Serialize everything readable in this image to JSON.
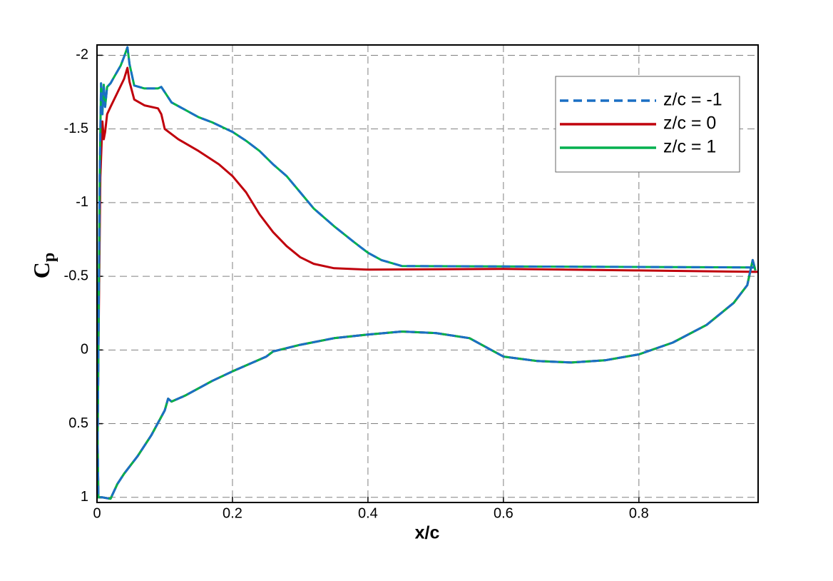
{
  "chart_data": {
    "type": "line",
    "x_label": "x/c",
    "y_label": {
      "text": "C",
      "subscript": "p"
    },
    "xlim": [
      0,
      0.976
    ],
    "ylim": [
      -2.07,
      1.035
    ],
    "invert_y": true,
    "xticks": [
      0,
      0.2,
      0.4,
      0.6,
      0.8
    ],
    "yticks": [
      -2,
      -1.5,
      -1,
      -0.5,
      0,
      0.5,
      1
    ],
    "grid": true,
    "legend": "upper right",
    "series": [
      {
        "name": "z/c = -1",
        "color": "#1a6fc4",
        "dash": true,
        "x": [
          0.97,
          0.45,
          0.42,
          0.4,
          0.38,
          0.35,
          0.32,
          0.3,
          0.28,
          0.26,
          0.24,
          0.22,
          0.2,
          0.17,
          0.15,
          0.13,
          0.11,
          0.1,
          0.095,
          0.09,
          0.07,
          0.055,
          0.048,
          0.045,
          0.04,
          0.035,
          0.025,
          0.02,
          0.015,
          0.012,
          0.01,
          0.008,
          0.006,
          0.004,
          0.002,
          0.001,
          0.002,
          0.008,
          0.02,
          0.03,
          0.04,
          0.06,
          0.08,
          0.1,
          0.105,
          0.11,
          0.13,
          0.17,
          0.2,
          0.25,
          0.26,
          0.3,
          0.35,
          0.4,
          0.45,
          0.5,
          0.55,
          0.58,
          0.6,
          0.65,
          0.7,
          0.75,
          0.8,
          0.85,
          0.9,
          0.94,
          0.96,
          0.968,
          0.972
        ],
        "values": [
          -0.56,
          -0.57,
          -0.61,
          -0.66,
          -0.73,
          -0.84,
          -0.96,
          -1.07,
          -1.18,
          -1.26,
          -1.35,
          -1.42,
          -1.48,
          -1.545,
          -1.58,
          -1.63,
          -1.68,
          -1.75,
          -1.785,
          -1.775,
          -1.775,
          -1.795,
          -1.94,
          -2.055,
          -1.99,
          -1.93,
          -1.85,
          -1.81,
          -1.785,
          -1.65,
          -1.8,
          -1.6,
          -1.81,
          -1.17,
          0.04,
          0.62,
          1.0,
          1.0,
          1.01,
          0.91,
          0.84,
          0.72,
          0.58,
          0.41,
          0.33,
          0.35,
          0.31,
          0.21,
          0.145,
          0.045,
          0.01,
          -0.035,
          -0.08,
          -0.105,
          -0.125,
          -0.115,
          -0.08,
          -0.005,
          0.045,
          0.075,
          0.085,
          0.07,
          0.03,
          -0.05,
          -0.17,
          -0.32,
          -0.44,
          -0.61,
          -0.54
        ]
      },
      {
        "name": "z/c = 0",
        "color": "#c0000c",
        "dash": false,
        "x": [
          0.975,
          0.8,
          0.6,
          0.4,
          0.35,
          0.32,
          0.3,
          0.28,
          0.26,
          0.24,
          0.22,
          0.2,
          0.18,
          0.15,
          0.12,
          0.1,
          0.095,
          0.09,
          0.07,
          0.055,
          0.048,
          0.045,
          0.04,
          0.03,
          0.02,
          0.015,
          0.012,
          0.01,
          0.008,
          0.005,
          0.002,
          0.001,
          0.002,
          0.008,
          0.02,
          0.03,
          0.04,
          0.06,
          0.08,
          0.1,
          0.105,
          0.11,
          0.13,
          0.17,
          0.2,
          0.25,
          0.26,
          0.3,
          0.35,
          0.4,
          0.45,
          0.5,
          0.55,
          0.58,
          0.6,
          0.65,
          0.7,
          0.75,
          0.8,
          0.85,
          0.9,
          0.94,
          0.96,
          0.968,
          0.972
        ],
        "values": [
          -0.53,
          -0.54,
          -0.55,
          -0.545,
          -0.555,
          -0.585,
          -0.63,
          -0.705,
          -0.8,
          -0.92,
          -1.07,
          -1.18,
          -1.26,
          -1.35,
          -1.43,
          -1.5,
          -1.6,
          -1.64,
          -1.66,
          -1.7,
          -1.82,
          -1.915,
          -1.84,
          -1.745,
          -1.65,
          -1.6,
          -1.48,
          -1.43,
          -1.55,
          -1.17,
          0.04,
          0.62,
          1.0,
          1.0,
          1.01,
          0.91,
          0.84,
          0.72,
          0.58,
          0.41,
          0.33,
          0.35,
          0.31,
          0.21,
          0.145,
          0.045,
          0.01,
          -0.035,
          -0.08,
          -0.105,
          -0.125,
          -0.115,
          -0.08,
          -0.005,
          0.045,
          0.075,
          0.085,
          0.07,
          0.03,
          -0.05,
          -0.17,
          -0.32,
          -0.44,
          -0.61,
          -0.54
        ]
      },
      {
        "name": "z/c = 1",
        "color": "#00b04f",
        "dash": false,
        "x": [
          0.97,
          0.45,
          0.42,
          0.4,
          0.38,
          0.35,
          0.32,
          0.3,
          0.28,
          0.26,
          0.24,
          0.22,
          0.2,
          0.17,
          0.15,
          0.13,
          0.11,
          0.1,
          0.095,
          0.09,
          0.07,
          0.055,
          0.048,
          0.045,
          0.04,
          0.035,
          0.025,
          0.02,
          0.015,
          0.012,
          0.01,
          0.008,
          0.006,
          0.004,
          0.002,
          0.001,
          0.002,
          0.008,
          0.02,
          0.03,
          0.04,
          0.06,
          0.08,
          0.1,
          0.105,
          0.11,
          0.13,
          0.17,
          0.2,
          0.25,
          0.26,
          0.3,
          0.35,
          0.4,
          0.45,
          0.5,
          0.55,
          0.58,
          0.6,
          0.65,
          0.7,
          0.75,
          0.8,
          0.85,
          0.9,
          0.94,
          0.96,
          0.968,
          0.972
        ],
        "values": [
          -0.56,
          -0.57,
          -0.61,
          -0.66,
          -0.73,
          -0.84,
          -0.96,
          -1.07,
          -1.18,
          -1.26,
          -1.35,
          -1.42,
          -1.48,
          -1.545,
          -1.58,
          -1.63,
          -1.68,
          -1.75,
          -1.785,
          -1.775,
          -1.775,
          -1.795,
          -1.94,
          -2.055,
          -1.99,
          -1.93,
          -1.85,
          -1.81,
          -1.785,
          -1.65,
          -1.8,
          -1.6,
          -1.81,
          -1.17,
          0.04,
          0.62,
          1.0,
          1.0,
          1.01,
          0.91,
          0.84,
          0.72,
          0.58,
          0.41,
          0.33,
          0.35,
          0.31,
          0.21,
          0.145,
          0.045,
          0.01,
          -0.035,
          -0.08,
          -0.105,
          -0.125,
          -0.115,
          -0.08,
          -0.005,
          0.045,
          0.075,
          0.085,
          0.07,
          0.03,
          -0.05,
          -0.17,
          -0.32,
          -0.44,
          -0.61,
          -0.54
        ]
      }
    ]
  }
}
